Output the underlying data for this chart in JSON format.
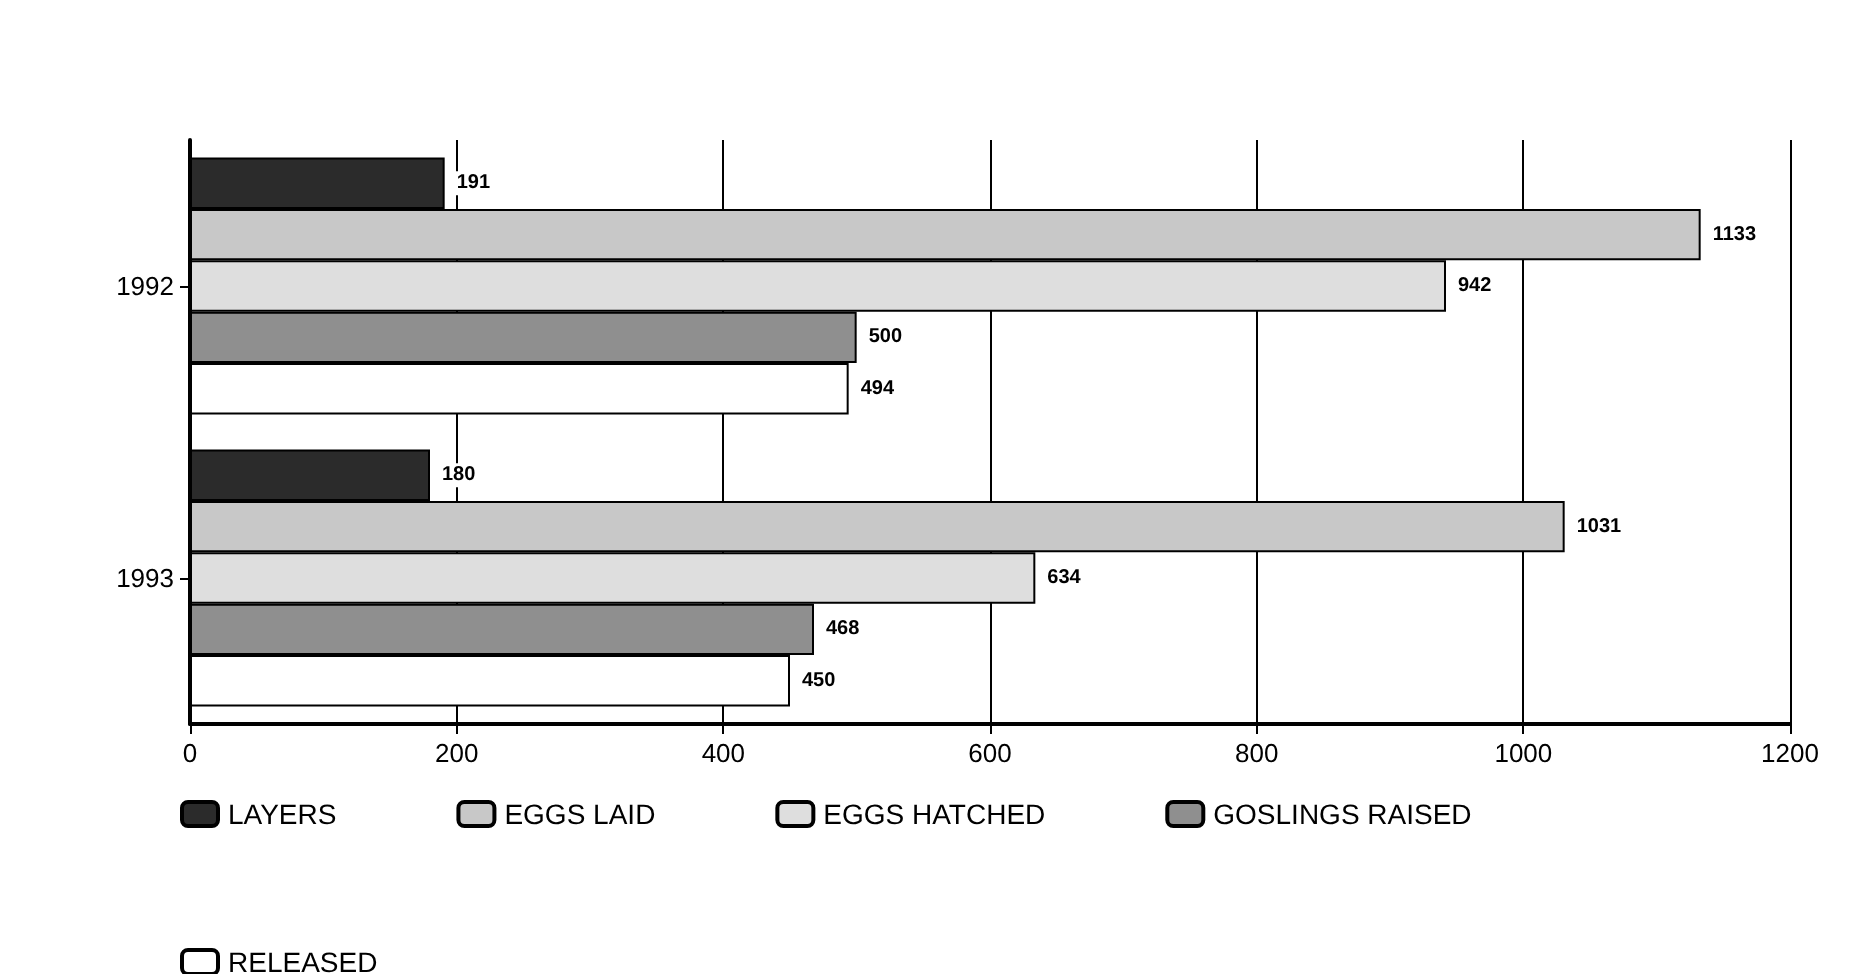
{
  "chart_data": {
    "type": "bar",
    "orientation": "horizontal",
    "categories": [
      "1992",
      "1993"
    ],
    "series": [
      {
        "name": "LAYERS",
        "color": "#2b2b2b",
        "values": [
          191,
          180
        ]
      },
      {
        "name": "EGGS LAID",
        "color": "#c8c8c8",
        "values": [
          1133,
          1031
        ]
      },
      {
        "name": "EGGS HATCHED",
        "color": "#dedede",
        "values": [
          942,
          634
        ]
      },
      {
        "name": "GOSLINGS RAISED",
        "color": "#8f8f8f",
        "values": [
          500,
          468
        ]
      },
      {
        "name": "RELEASED",
        "color": "#ffffff",
        "values": [
          494,
          450
        ]
      }
    ],
    "xlim": [
      0,
      1200
    ],
    "xticks": [
      0,
      200,
      400,
      600,
      800,
      1000,
      1200
    ],
    "grid": "x",
    "legend": "bottom",
    "data_labels": true
  }
}
